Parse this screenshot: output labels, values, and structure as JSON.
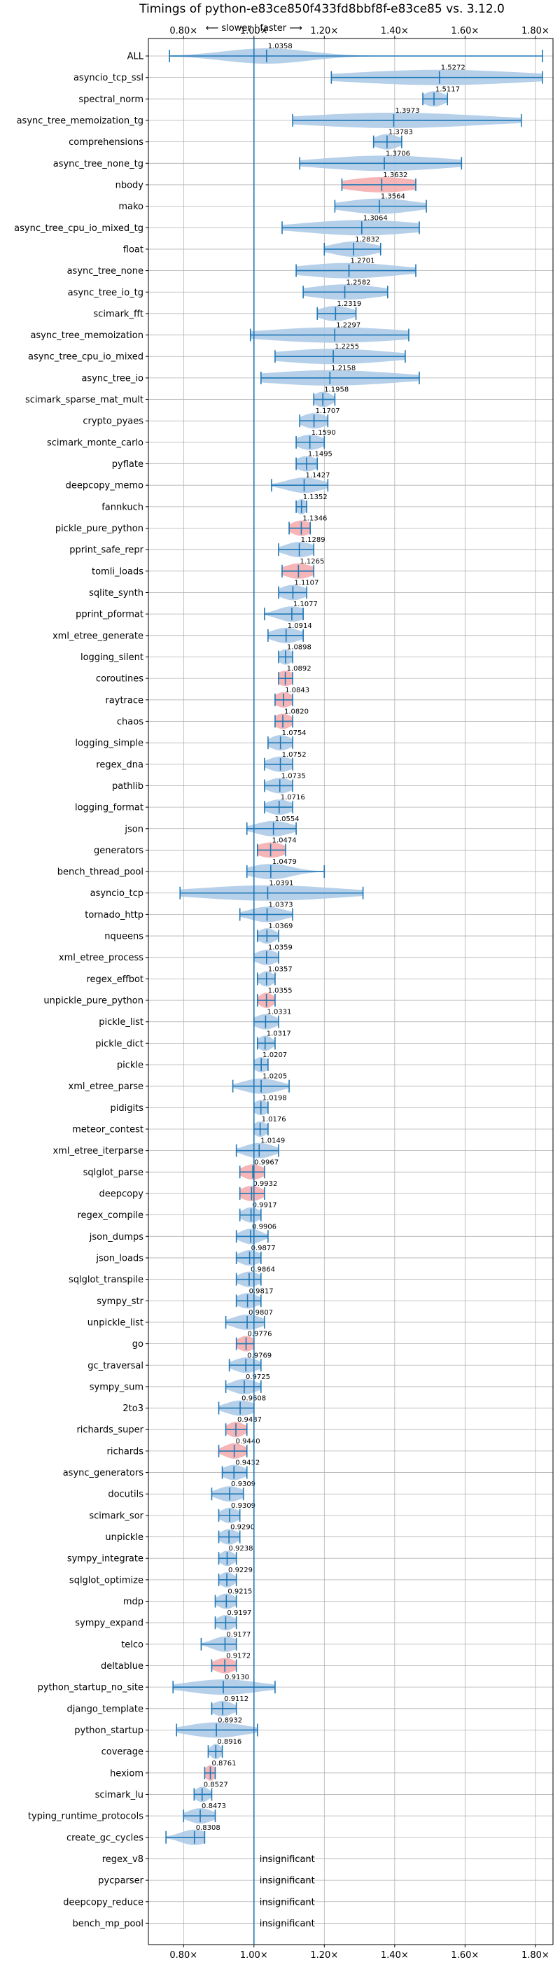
{
  "chart_data": {
    "type": "violin",
    "title": "Timings of python-e83ce850f433fd8bbf8f-e83ce85 vs. 3.12.0",
    "subtitle": "⟵ slower | faster ⟶",
    "xlabel": "",
    "ylabel": "",
    "xlim": [
      0.7,
      1.85
    ],
    "xticks": [
      0.8,
      1.0,
      1.2,
      1.4,
      1.6,
      1.8
    ],
    "xtick_labels": [
      "0.80×",
      "1.00×",
      "1.20×",
      "1.40×",
      "1.60×",
      "1.80×"
    ],
    "reference_line": 1.0,
    "grid": true,
    "colors": {
      "normal": "#a9c8e6",
      "highlight": "#f4a9aa",
      "line": "#1f77b4"
    },
    "rows": [
      {
        "name": "ALL",
        "label": "1.0358",
        "center": 1.0358,
        "min": 0.76,
        "max": 1.82,
        "spread": 0.12,
        "highlight": false
      },
      {
        "name": "asyncio_tcp_ssl",
        "label": "1.5272",
        "center": 1.5272,
        "min": 1.22,
        "max": 1.82,
        "spread": 0.25,
        "highlight": false
      },
      {
        "name": "spectral_norm",
        "label": "1.5117",
        "center": 1.5117,
        "min": 1.48,
        "max": 1.55,
        "spread": 0.03,
        "highlight": false
      },
      {
        "name": "async_tree_memoization_tg",
        "label": "1.3973",
        "center": 1.3973,
        "min": 1.11,
        "max": 1.76,
        "spread": 0.25,
        "highlight": false
      },
      {
        "name": "comprehensions",
        "label": "1.3783",
        "center": 1.3783,
        "min": 1.34,
        "max": 1.42,
        "spread": 0.035,
        "highlight": false
      },
      {
        "name": "async_tree_none_tg",
        "label": "1.3706",
        "center": 1.3706,
        "min": 1.13,
        "max": 1.59,
        "spread": 0.18,
        "highlight": false
      },
      {
        "name": "nbody",
        "label": "1.3632",
        "center": 1.3632,
        "min": 1.25,
        "max": 1.46,
        "spread": 0.1,
        "highlight": true
      },
      {
        "name": "mako",
        "label": "1.3564",
        "center": 1.3564,
        "min": 1.23,
        "max": 1.49,
        "spread": 0.1,
        "highlight": false
      },
      {
        "name": "async_tree_cpu_io_mixed_tg",
        "label": "1.3064",
        "center": 1.3064,
        "min": 1.08,
        "max": 1.47,
        "spread": 0.16,
        "highlight": false
      },
      {
        "name": "float",
        "label": "1.2832",
        "center": 1.2832,
        "min": 1.2,
        "max": 1.36,
        "spread": 0.06,
        "highlight": false
      },
      {
        "name": "async_tree_none",
        "label": "1.2701",
        "center": 1.2701,
        "min": 1.12,
        "max": 1.46,
        "spread": 0.14,
        "highlight": false
      },
      {
        "name": "async_tree_io_tg",
        "label": "1.2582",
        "center": 1.2582,
        "min": 1.14,
        "max": 1.38,
        "spread": 0.1,
        "highlight": false
      },
      {
        "name": "scimark_fft",
        "label": "1.2319",
        "center": 1.2319,
        "min": 1.18,
        "max": 1.29,
        "spread": 0.045,
        "highlight": false
      },
      {
        "name": "async_tree_memoization",
        "label": "1.2297",
        "center": 1.2297,
        "min": 0.99,
        "max": 1.44,
        "spread": 0.2,
        "highlight": false
      },
      {
        "name": "async_tree_cpu_io_mixed",
        "label": "1.2255",
        "center": 1.2255,
        "min": 1.06,
        "max": 1.43,
        "spread": 0.16,
        "highlight": false
      },
      {
        "name": "async_tree_io",
        "label": "1.2158",
        "center": 1.2158,
        "min": 1.02,
        "max": 1.47,
        "spread": 0.19,
        "highlight": false
      },
      {
        "name": "scimark_sparse_mat_mult",
        "label": "1.1958",
        "center": 1.1958,
        "min": 1.17,
        "max": 1.23,
        "spread": 0.025,
        "highlight": false
      },
      {
        "name": "crypto_pyaes",
        "label": "1.1707",
        "center": 1.1707,
        "min": 1.13,
        "max": 1.21,
        "spread": 0.035,
        "highlight": false
      },
      {
        "name": "scimark_monte_carlo",
        "label": "1.1590",
        "center": 1.159,
        "min": 1.12,
        "max": 1.2,
        "spread": 0.035,
        "highlight": false
      },
      {
        "name": "pyflate",
        "label": "1.1495",
        "center": 1.1495,
        "min": 1.12,
        "max": 1.18,
        "spread": 0.03,
        "highlight": false
      },
      {
        "name": "deepcopy_memo",
        "label": "1.1427",
        "center": 1.1427,
        "min": 1.05,
        "max": 1.21,
        "spread": 0.05,
        "highlight": false
      },
      {
        "name": "fannkuch",
        "label": "1.1352",
        "center": 1.1352,
        "min": 1.12,
        "max": 1.15,
        "spread": 0.015,
        "highlight": false
      },
      {
        "name": "pickle_pure_python",
        "label": "1.1346",
        "center": 1.1346,
        "min": 1.1,
        "max": 1.16,
        "spread": 0.03,
        "highlight": true
      },
      {
        "name": "pprint_safe_repr",
        "label": "1.1289",
        "center": 1.1289,
        "min": 1.07,
        "max": 1.17,
        "spread": 0.04,
        "highlight": false
      },
      {
        "name": "tomli_loads",
        "label": "1.1265",
        "center": 1.1265,
        "min": 1.08,
        "max": 1.17,
        "spread": 0.04,
        "highlight": true
      },
      {
        "name": "sqlite_synth",
        "label": "1.1107",
        "center": 1.1107,
        "min": 1.07,
        "max": 1.15,
        "spread": 0.035,
        "highlight": false
      },
      {
        "name": "pprint_pformat",
        "label": "1.1077",
        "center": 1.1077,
        "min": 1.03,
        "max": 1.14,
        "spread": 0.04,
        "highlight": false
      },
      {
        "name": "xml_etree_generate",
        "label": "1.0914",
        "center": 1.0914,
        "min": 1.04,
        "max": 1.14,
        "spread": 0.04,
        "highlight": false
      },
      {
        "name": "logging_silent",
        "label": "1.0898",
        "center": 1.0898,
        "min": 1.07,
        "max": 1.11,
        "spread": 0.02,
        "highlight": false
      },
      {
        "name": "coroutines",
        "label": "1.0892",
        "center": 1.0892,
        "min": 1.07,
        "max": 1.11,
        "spread": 0.025,
        "highlight": true
      },
      {
        "name": "raytrace",
        "label": "1.0843",
        "center": 1.0843,
        "min": 1.06,
        "max": 1.11,
        "spread": 0.025,
        "highlight": true
      },
      {
        "name": "chaos",
        "label": "1.0820",
        "center": 1.082,
        "min": 1.06,
        "max": 1.11,
        "spread": 0.025,
        "highlight": true
      },
      {
        "name": "logging_simple",
        "label": "1.0754",
        "center": 1.0754,
        "min": 1.04,
        "max": 1.11,
        "spread": 0.03,
        "highlight": false
      },
      {
        "name": "regex_dna",
        "label": "1.0752",
        "center": 1.0752,
        "min": 1.03,
        "max": 1.11,
        "spread": 0.035,
        "highlight": false
      },
      {
        "name": "pathlib",
        "label": "1.0735",
        "center": 1.0735,
        "min": 1.03,
        "max": 1.11,
        "spread": 0.035,
        "highlight": false
      },
      {
        "name": "logging_format",
        "label": "1.0716",
        "center": 1.0716,
        "min": 1.03,
        "max": 1.11,
        "spread": 0.035,
        "highlight": false
      },
      {
        "name": "json",
        "label": "1.0554",
        "center": 1.0554,
        "min": 0.98,
        "max": 1.12,
        "spread": 0.05,
        "highlight": false
      },
      {
        "name": "generators",
        "label": "1.0474",
        "center": 1.0474,
        "min": 1.01,
        "max": 1.09,
        "spread": 0.04,
        "highlight": true
      },
      {
        "name": "bench_thread_pool",
        "label": "1.0479",
        "center": 1.0479,
        "min": 0.98,
        "max": 1.2,
        "spread": 0.06,
        "highlight": false
      },
      {
        "name": "asyncio_tcp",
        "label": "1.0391",
        "center": 1.0391,
        "min": 0.79,
        "max": 1.31,
        "spread": 0.2,
        "highlight": false
      },
      {
        "name": "tornado_http",
        "label": "1.0373",
        "center": 1.0373,
        "min": 0.96,
        "max": 1.11,
        "spread": 0.05,
        "highlight": false
      },
      {
        "name": "nqueens",
        "label": "1.0369",
        "center": 1.0369,
        "min": 1.01,
        "max": 1.07,
        "spread": 0.025,
        "highlight": false
      },
      {
        "name": "xml_etree_process",
        "label": "1.0359",
        "center": 1.0359,
        "min": 1.0,
        "max": 1.07,
        "spread": 0.03,
        "highlight": false
      },
      {
        "name": "regex_effbot",
        "label": "1.0357",
        "center": 1.0357,
        "min": 1.01,
        "max": 1.06,
        "spread": 0.02,
        "highlight": false
      },
      {
        "name": "unpickle_pure_python",
        "label": "1.0355",
        "center": 1.0355,
        "min": 1.01,
        "max": 1.06,
        "spread": 0.02,
        "highlight": true
      },
      {
        "name": "pickle_list",
        "label": "1.0331",
        "center": 1.0331,
        "min": 1.0,
        "max": 1.07,
        "spread": 0.03,
        "highlight": false
      },
      {
        "name": "pickle_dict",
        "label": "1.0317",
        "center": 1.0317,
        "min": 1.01,
        "max": 1.06,
        "spread": 0.02,
        "highlight": false
      },
      {
        "name": "pickle",
        "label": "1.0207",
        "center": 1.0207,
        "min": 1.0,
        "max": 1.04,
        "spread": 0.02,
        "highlight": false
      },
      {
        "name": "xml_etree_parse",
        "label": "1.0205",
        "center": 1.0205,
        "min": 0.94,
        "max": 1.1,
        "spread": 0.05,
        "highlight": false
      },
      {
        "name": "pidigits",
        "label": "1.0198",
        "center": 1.0198,
        "min": 1.0,
        "max": 1.04,
        "spread": 0.02,
        "highlight": false
      },
      {
        "name": "meteor_contest",
        "label": "1.0176",
        "center": 1.0176,
        "min": 1.0,
        "max": 1.04,
        "spread": 0.02,
        "highlight": false
      },
      {
        "name": "xml_etree_iterparse",
        "label": "1.0149",
        "center": 1.0149,
        "min": 0.95,
        "max": 1.07,
        "spread": 0.04,
        "highlight": false
      },
      {
        "name": "sqlglot_parse",
        "label": "0.9967",
        "center": 0.9967,
        "min": 0.96,
        "max": 1.03,
        "spread": 0.03,
        "highlight": true
      },
      {
        "name": "deepcopy",
        "label": "0.9932",
        "center": 0.9932,
        "min": 0.96,
        "max": 1.03,
        "spread": 0.03,
        "highlight": true
      },
      {
        "name": "regex_compile",
        "label": "0.9917",
        "center": 0.9917,
        "min": 0.96,
        "max": 1.02,
        "spread": 0.025,
        "highlight": false
      },
      {
        "name": "json_dumps",
        "label": "0.9906",
        "center": 0.9906,
        "min": 0.95,
        "max": 1.04,
        "spread": 0.03,
        "highlight": false
      },
      {
        "name": "json_loads",
        "label": "0.9877",
        "center": 0.9877,
        "min": 0.95,
        "max": 1.02,
        "spread": 0.03,
        "highlight": false
      },
      {
        "name": "sqlglot_transpile",
        "label": "0.9864",
        "center": 0.9864,
        "min": 0.95,
        "max": 1.02,
        "spread": 0.03,
        "highlight": false
      },
      {
        "name": "sympy_str",
        "label": "0.9817",
        "center": 0.9817,
        "min": 0.95,
        "max": 1.02,
        "spread": 0.03,
        "highlight": false
      },
      {
        "name": "unpickle_list",
        "label": "0.9807",
        "center": 0.9807,
        "min": 0.92,
        "max": 1.03,
        "spread": 0.04,
        "highlight": false
      },
      {
        "name": "go",
        "label": "0.9776",
        "center": 0.9776,
        "min": 0.95,
        "max": 1.0,
        "spread": 0.025,
        "highlight": true
      },
      {
        "name": "gc_traversal",
        "label": "0.9769",
        "center": 0.9769,
        "min": 0.93,
        "max": 1.02,
        "spread": 0.035,
        "highlight": false
      },
      {
        "name": "sympy_sum",
        "label": "0.9725",
        "center": 0.9725,
        "min": 0.92,
        "max": 1.02,
        "spread": 0.035,
        "highlight": false
      },
      {
        "name": "2to3",
        "label": "0.9608",
        "center": 0.9608,
        "min": 0.9,
        "max": 1.0,
        "spread": 0.04,
        "highlight": false
      },
      {
        "name": "richards_super",
        "label": "0.9487",
        "center": 0.9487,
        "min": 0.92,
        "max": 0.98,
        "spread": 0.025,
        "highlight": true
      },
      {
        "name": "richards",
        "label": "0.9440",
        "center": 0.944,
        "min": 0.9,
        "max": 0.98,
        "spread": 0.03,
        "highlight": true
      },
      {
        "name": "async_generators",
        "label": "0.9432",
        "center": 0.9432,
        "min": 0.91,
        "max": 0.98,
        "spread": 0.03,
        "highlight": false
      },
      {
        "name": "docutils",
        "label": "0.9309",
        "center": 0.9309,
        "min": 0.88,
        "max": 0.97,
        "spread": 0.035,
        "highlight": false
      },
      {
        "name": "scimark_sor",
        "label": "0.9309",
        "center": 0.9309,
        "min": 0.9,
        "max": 0.96,
        "spread": 0.025,
        "highlight": false
      },
      {
        "name": "unpickle",
        "label": "0.9290",
        "center": 0.929,
        "min": 0.9,
        "max": 0.96,
        "spread": 0.025,
        "highlight": false
      },
      {
        "name": "sympy_integrate",
        "label": "0.9238",
        "center": 0.9238,
        "min": 0.9,
        "max": 0.95,
        "spread": 0.02,
        "highlight": false
      },
      {
        "name": "sqlglot_optimize",
        "label": "0.9229",
        "center": 0.9229,
        "min": 0.9,
        "max": 0.95,
        "spread": 0.02,
        "highlight": false
      },
      {
        "name": "mdp",
        "label": "0.9215",
        "center": 0.9215,
        "min": 0.89,
        "max": 0.95,
        "spread": 0.025,
        "highlight": false
      },
      {
        "name": "sympy_expand",
        "label": "0.9197",
        "center": 0.9197,
        "min": 0.89,
        "max": 0.95,
        "spread": 0.025,
        "highlight": false
      },
      {
        "name": "telco",
        "label": "0.9177",
        "center": 0.9177,
        "min": 0.85,
        "max": 0.95,
        "spread": 0.035,
        "highlight": false
      },
      {
        "name": "deltablue",
        "label": "0.9172",
        "center": 0.9172,
        "min": 0.88,
        "max": 0.95,
        "spread": 0.03,
        "highlight": true
      },
      {
        "name": "python_startup_no_site",
        "label": "0.9130",
        "center": 0.913,
        "min": 0.77,
        "max": 1.06,
        "spread": 0.1,
        "highlight": false
      },
      {
        "name": "django_template",
        "label": "0.9112",
        "center": 0.9112,
        "min": 0.88,
        "max": 0.95,
        "spread": 0.03,
        "highlight": false
      },
      {
        "name": "python_startup",
        "label": "0.8932",
        "center": 0.8932,
        "min": 0.78,
        "max": 1.01,
        "spread": 0.08,
        "highlight": false
      },
      {
        "name": "coverage",
        "label": "0.8916",
        "center": 0.8916,
        "min": 0.87,
        "max": 0.91,
        "spread": 0.015,
        "highlight": false
      },
      {
        "name": "hexiom",
        "label": "0.8761",
        "center": 0.8761,
        "min": 0.86,
        "max": 0.89,
        "spread": 0.015,
        "highlight": true
      },
      {
        "name": "scimark_lu",
        "label": "0.8527",
        "center": 0.8527,
        "min": 0.83,
        "max": 0.88,
        "spread": 0.02,
        "highlight": false
      },
      {
        "name": "typing_runtime_protocols",
        "label": "0.8473",
        "center": 0.8473,
        "min": 0.8,
        "max": 0.89,
        "spread": 0.035,
        "highlight": false
      },
      {
        "name": "create_gc_cycles",
        "label": "0.8308",
        "center": 0.8308,
        "min": 0.75,
        "max": 0.86,
        "spread": 0.04,
        "highlight": false
      },
      {
        "name": "regex_v8",
        "label": "insignificant",
        "center": null,
        "min": null,
        "max": null,
        "spread": null,
        "highlight": false
      },
      {
        "name": "pycparser",
        "label": "insignificant",
        "center": null,
        "min": null,
        "max": null,
        "spread": null,
        "highlight": false
      },
      {
        "name": "deepcopy_reduce",
        "label": "insignificant",
        "center": null,
        "min": null,
        "max": null,
        "spread": null,
        "highlight": false
      },
      {
        "name": "bench_mp_pool",
        "label": "insignificant",
        "center": null,
        "min": null,
        "max": null,
        "spread": null,
        "highlight": false
      }
    ]
  }
}
